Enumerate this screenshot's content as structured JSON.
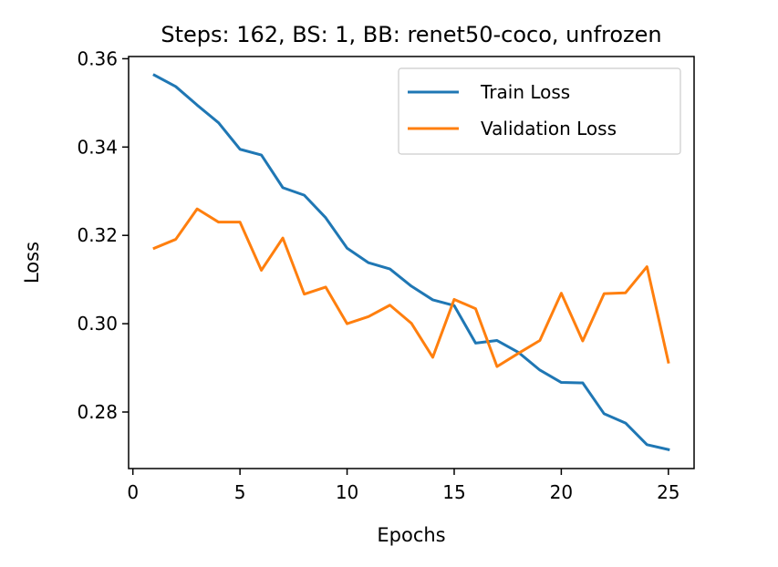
{
  "chart_data": {
    "type": "line",
    "title": "Steps: 162, BS: 1, BB: renet50-coco, unfrozen",
    "xlabel": "Epochs",
    "ylabel": "Loss",
    "xlim": [
      -0.2,
      26.2
    ],
    "ylim": [
      0.2672,
      0.3605
    ],
    "xticks": [
      0,
      5,
      10,
      15,
      20,
      25
    ],
    "yticks": [
      0.28,
      0.3,
      0.32,
      0.34,
      0.36
    ],
    "xtick_labels": [
      "0",
      "5",
      "10",
      "15",
      "20",
      "25"
    ],
    "ytick_labels": [
      "0.28",
      "0.30",
      "0.32",
      "0.34",
      "0.36"
    ],
    "grid": false,
    "legend_position": "top-right",
    "x": [
      1,
      2,
      3,
      4,
      5,
      6,
      7,
      8,
      9,
      10,
      11,
      12,
      13,
      14,
      15,
      16,
      17,
      18,
      19,
      20,
      21,
      22,
      23,
      24,
      25
    ],
    "series": [
      {
        "name": "Train Loss",
        "color": "#1f77b4",
        "values": [
          0.3563,
          0.3537,
          0.3495,
          0.3455,
          0.3395,
          0.3382,
          0.3308,
          0.3291,
          0.324,
          0.3171,
          0.3138,
          0.3124,
          0.3085,
          0.3054,
          0.3041,
          0.2956,
          0.2962,
          0.2935,
          0.2895,
          0.2867,
          0.2866,
          0.2796,
          0.2775,
          0.2726,
          0.2715
        ]
      },
      {
        "name": "Validation Loss",
        "color": "#ff7f0e",
        "values": [
          0.3171,
          0.3191,
          0.326,
          0.323,
          0.323,
          0.3121,
          0.3194,
          0.3067,
          0.3083,
          0.3,
          0.3016,
          0.3042,
          0.3001,
          0.2924,
          0.3055,
          0.3034,
          0.2903,
          0.2933,
          0.2962,
          0.3069,
          0.2961,
          0.3068,
          0.307,
          0.3129,
          0.2913
        ]
      }
    ]
  }
}
